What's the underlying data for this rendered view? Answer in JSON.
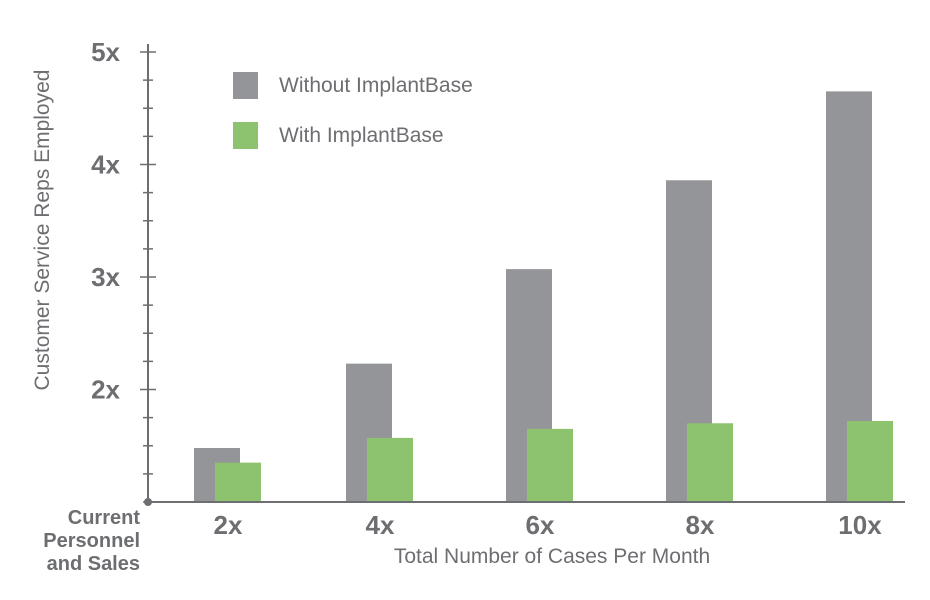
{
  "chart_data": {
    "type": "bar",
    "title": "",
    "xlabel": "Total Number of Cases Per Month",
    "ylabel": "Customer Service Reps Employed",
    "origin_label": [
      "Current",
      "Personnel",
      "and Sales"
    ],
    "categories": [
      "2x",
      "4x",
      "6x",
      "8x",
      "10x"
    ],
    "series": [
      {
        "name": "Without ImplantBase",
        "color": "#939598",
        "values": [
          1.48,
          2.23,
          3.07,
          3.86,
          4.65
        ]
      },
      {
        "name": "With ImplantBase",
        "color": "#8dc26f",
        "values": [
          1.35,
          1.57,
          1.65,
          1.7,
          1.72
        ]
      }
    ],
    "ylim": [
      1.0,
      5.0
    ],
    "yticks": [
      2,
      3,
      4,
      5
    ],
    "ytick_labels": [
      "2x",
      "3x",
      "4x",
      "5x"
    ],
    "legend_position": "top-left",
    "grid": false
  }
}
